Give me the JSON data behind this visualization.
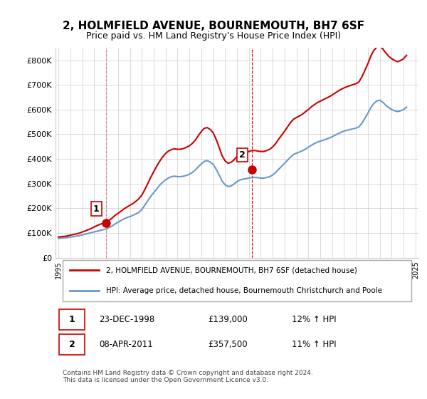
{
  "title": "2, HOLMFIELD AVENUE, BOURNEMOUTH, BH7 6SF",
  "subtitle": "Price paid vs. HM Land Registry's House Price Index (HPI)",
  "legend_line1": "2, HOLMFIELD AVENUE, BOURNEMOUTH, BH7 6SF (detached house)",
  "legend_line2": "HPI: Average price, detached house, Bournemouth Christchurch and Poole",
  "footnote": "Contains HM Land Registry data © Crown copyright and database right 2024.\nThis data is licensed under the Open Government Licence v3.0.",
  "table_rows": [
    {
      "num": "1",
      "date": "23-DEC-1998",
      "price": "£139,000",
      "hpi": "12% ↑ HPI"
    },
    {
      "num": "2",
      "date": "08-APR-2011",
      "price": "£357,500",
      "hpi": "11% ↑ HPI"
    }
  ],
  "ylim": [
    0,
    850000
  ],
  "yticks": [
    0,
    100000,
    200000,
    300000,
    400000,
    500000,
    600000,
    700000,
    800000
  ],
  "ytick_labels": [
    "£0",
    "£100K",
    "£200K",
    "£300K",
    "£400K",
    "£500K",
    "£600K",
    "£700K",
    "£800K"
  ],
  "x_start_year": 1995,
  "x_end_year": 2025,
  "xticks": [
    1995,
    1996,
    1997,
    1998,
    1999,
    2000,
    2001,
    2002,
    2003,
    2004,
    2005,
    2006,
    2007,
    2008,
    2009,
    2010,
    2011,
    2012,
    2013,
    2014,
    2015,
    2016,
    2017,
    2018,
    2019,
    2020,
    2021,
    2022,
    2023,
    2024,
    2025
  ],
  "sale_color": "#cc0000",
  "hpi_color": "#6699cc",
  "vline_color": "#cc0000",
  "marker_color": "#cc0000",
  "sale_marker_dates": [
    1998.97,
    2011.27
  ],
  "sale_marker_values": [
    139000,
    357500
  ],
  "sale_marker_labels": [
    "1",
    "2"
  ],
  "vline_dates": [
    1998.97,
    2011.27
  ],
  "grid_color": "#cccccc",
  "bg_color": "#ffffff",
  "plot_bg_color": "#ffffff",
  "hpi_data": {
    "years": [
      1995.0,
      1995.25,
      1995.5,
      1995.75,
      1996.0,
      1996.25,
      1996.5,
      1996.75,
      1997.0,
      1997.25,
      1997.5,
      1997.75,
      1998.0,
      1998.25,
      1998.5,
      1998.75,
      1999.0,
      1999.25,
      1999.5,
      1999.75,
      2000.0,
      2000.25,
      2000.5,
      2000.75,
      2001.0,
      2001.25,
      2001.5,
      2001.75,
      2002.0,
      2002.25,
      2002.5,
      2002.75,
      2003.0,
      2003.25,
      2003.5,
      2003.75,
      2004.0,
      2004.25,
      2004.5,
      2004.75,
      2005.0,
      2005.25,
      2005.5,
      2005.75,
      2006.0,
      2006.25,
      2006.5,
      2006.75,
      2007.0,
      2007.25,
      2007.5,
      2007.75,
      2008.0,
      2008.25,
      2008.5,
      2008.75,
      2009.0,
      2009.25,
      2009.5,
      2009.75,
      2010.0,
      2010.25,
      2010.5,
      2010.75,
      2011.0,
      2011.25,
      2011.5,
      2011.75,
      2012.0,
      2012.25,
      2012.5,
      2012.75,
      2013.0,
      2013.25,
      2013.5,
      2013.75,
      2014.0,
      2014.25,
      2014.5,
      2014.75,
      2015.0,
      2015.25,
      2015.5,
      2015.75,
      2016.0,
      2016.25,
      2016.5,
      2016.75,
      2017.0,
      2017.25,
      2017.5,
      2017.75,
      2018.0,
      2018.25,
      2018.5,
      2018.75,
      2019.0,
      2019.25,
      2019.5,
      2019.75,
      2020.0,
      2020.25,
      2020.5,
      2020.75,
      2021.0,
      2021.25,
      2021.5,
      2021.75,
      2022.0,
      2022.25,
      2022.5,
      2022.75,
      2023.0,
      2023.25,
      2023.5,
      2023.75,
      2024.0,
      2024.25
    ],
    "values": [
      78000,
      79000,
      80000,
      81000,
      83000,
      85000,
      87000,
      89000,
      92000,
      95000,
      98000,
      101000,
      104000,
      107000,
      110000,
      113000,
      116000,
      122000,
      128000,
      136000,
      143000,
      150000,
      157000,
      162000,
      166000,
      171000,
      177000,
      183000,
      195000,
      212000,
      230000,
      248000,
      263000,
      278000,
      293000,
      305000,
      315000,
      323000,
      328000,
      330000,
      328000,
      328000,
      330000,
      333000,
      338000,
      345000,
      355000,
      368000,
      380000,
      390000,
      393000,
      387000,
      378000,
      358000,
      335000,
      310000,
      295000,
      288000,
      290000,
      298000,
      308000,
      315000,
      318000,
      320000,
      322000,
      325000,
      325000,
      324000,
      322000,
      322000,
      325000,
      328000,
      335000,
      345000,
      358000,
      370000,
      382000,
      395000,
      408000,
      418000,
      423000,
      428000,
      433000,
      440000,
      447000,
      455000,
      462000,
      468000,
      472000,
      476000,
      480000,
      485000,
      490000,
      496000,
      502000,
      508000,
      513000,
      516000,
      519000,
      522000,
      525000,
      530000,
      545000,
      565000,
      585000,
      608000,
      625000,
      635000,
      638000,
      630000,
      618000,
      608000,
      600000,
      595000,
      592000,
      595000,
      600000,
      610000
    ]
  },
  "price_data": {
    "years": [
      1995.0,
      1995.25,
      1995.5,
      1995.75,
      1996.0,
      1996.25,
      1996.5,
      1996.75,
      1997.0,
      1997.25,
      1997.5,
      1997.75,
      1998.0,
      1998.25,
      1998.5,
      1998.75,
      1999.0,
      1999.25,
      1999.5,
      1999.75,
      2000.0,
      2000.25,
      2000.5,
      2000.75,
      2001.0,
      2001.25,
      2001.5,
      2001.75,
      2002.0,
      2002.25,
      2002.5,
      2002.75,
      2003.0,
      2003.25,
      2003.5,
      2003.75,
      2004.0,
      2004.25,
      2004.5,
      2004.75,
      2005.0,
      2005.25,
      2005.5,
      2005.75,
      2006.0,
      2006.25,
      2006.5,
      2006.75,
      2007.0,
      2007.25,
      2007.5,
      2007.75,
      2008.0,
      2008.25,
      2008.5,
      2008.75,
      2009.0,
      2009.25,
      2009.5,
      2009.75,
      2010.0,
      2010.25,
      2010.5,
      2010.75,
      2011.0,
      2011.25,
      2011.5,
      2011.75,
      2012.0,
      2012.25,
      2012.5,
      2012.75,
      2013.0,
      2013.25,
      2013.5,
      2013.75,
      2014.0,
      2014.25,
      2014.5,
      2014.75,
      2015.0,
      2015.25,
      2015.5,
      2015.75,
      2016.0,
      2016.25,
      2016.5,
      2016.75,
      2017.0,
      2017.25,
      2017.5,
      2017.75,
      2018.0,
      2018.25,
      2018.5,
      2018.75,
      2019.0,
      2019.25,
      2019.5,
      2019.75,
      2020.0,
      2020.25,
      2020.5,
      2020.75,
      2021.0,
      2021.25,
      2021.5,
      2021.75,
      2022.0,
      2022.25,
      2022.5,
      2022.75,
      2023.0,
      2023.25,
      2023.5,
      2023.75,
      2024.0,
      2024.25
    ],
    "values": [
      83000,
      85000,
      86000,
      88000,
      91000,
      93000,
      96000,
      99000,
      104000,
      108000,
      113000,
      118000,
      124000,
      130000,
      135000,
      139000,
      143000,
      151000,
      160000,
      171000,
      179000,
      188000,
      197000,
      205000,
      212000,
      219000,
      228000,
      238000,
      253000,
      275000,
      300000,
      325000,
      348000,
      370000,
      390000,
      408000,
      422000,
      432000,
      438000,
      441000,
      439000,
      439000,
      442000,
      447000,
      453000,
      463000,
      476000,
      494000,
      511000,
      524000,
      527000,
      519000,
      506000,
      479000,
      447000,
      413000,
      392000,
      382000,
      386000,
      396000,
      410000,
      420000,
      424000,
      427000,
      430000,
      434000,
      434000,
      432000,
      430000,
      430000,
      434000,
      439000,
      449000,
      462000,
      480000,
      496000,
      512000,
      530000,
      547000,
      561000,
      568000,
      574000,
      581000,
      591000,
      600000,
      611000,
      620000,
      628000,
      634000,
      640000,
      646000,
      652000,
      659000,
      667000,
      675000,
      682000,
      688000,
      693000,
      697000,
      701000,
      705000,
      712000,
      733000,
      759000,
      786000,
      817000,
      840000,
      853000,
      857000,
      846000,
      830000,
      816000,
      806000,
      799000,
      794000,
      799000,
      806000,
      820000
    ]
  }
}
